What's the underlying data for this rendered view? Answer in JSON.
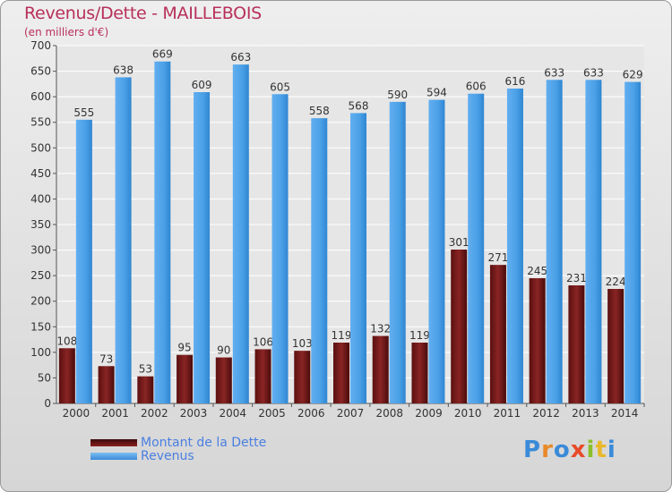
{
  "title": "Revenus/Dette - MAILLEBOIS",
  "subtitle": "(en milliers d'€)",
  "logo": {
    "letters": [
      "P",
      "r",
      "o",
      "x",
      "i",
      "t",
      "i"
    ],
    "colors": [
      "#3a8ad8",
      "#e8892a",
      "#3a8ad8",
      "#e84a2a",
      "#8cbf2a",
      "#e8b82a",
      "#3a8ad8"
    ]
  },
  "chart_data": {
    "type": "bar",
    "categories": [
      "2000",
      "2001",
      "2002",
      "2003",
      "2004",
      "2005",
      "2006",
      "2007",
      "2008",
      "2009",
      "2010",
      "2011",
      "2012",
      "2013",
      "2014"
    ],
    "series": [
      {
        "name": "Montant de la Dette",
        "color": "#8a2020",
        "values": [
          108,
          73,
          53,
          95,
          90,
          106,
          103,
          119,
          132,
          119,
          301,
          271,
          245,
          231,
          224
        ]
      },
      {
        "name": "Revenus",
        "color": "#4aa0e6",
        "values": [
          555,
          638,
          669,
          609,
          663,
          605,
          558,
          568,
          590,
          594,
          606,
          616,
          633,
          633,
          629
        ]
      }
    ],
    "ylim": [
      0,
      700
    ],
    "yticks": [
      0,
      50,
      100,
      150,
      200,
      250,
      300,
      350,
      400,
      450,
      500,
      550,
      600,
      650,
      700
    ],
    "grid": true,
    "legend_position": "bottom-left"
  }
}
